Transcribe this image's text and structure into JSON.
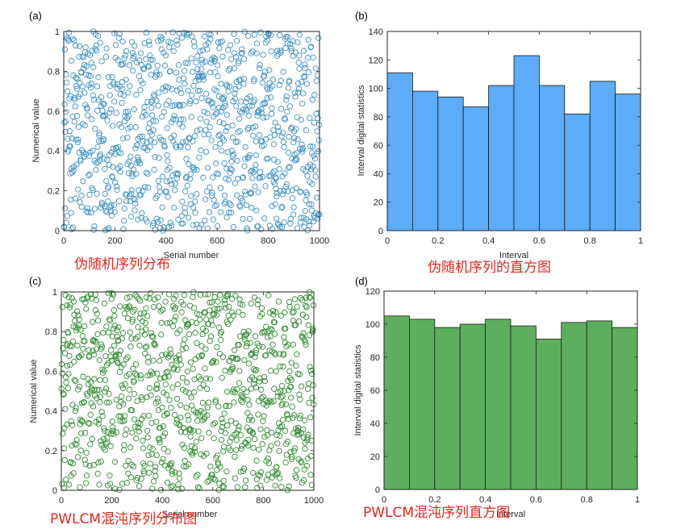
{
  "figure": {
    "panels": [
      {
        "label": "(a)",
        "xlabel": "Serial number",
        "ylabel": "Numerical value",
        "caption": "伪随机序列分布"
      },
      {
        "label": "(b)",
        "xlabel": "Interval",
        "ylabel": "Interval digital statistics",
        "caption": "伪随机序列的直方图"
      },
      {
        "label": "(c)",
        "xlabel": "Serial number",
        "ylabel": "Numerical value",
        "caption": "PWLCM混沌序列分布图"
      },
      {
        "label": "(d)",
        "xlabel": "Interval",
        "ylabel": "Interval digital statistics",
        "caption": "PWLCM混沌序列直方图"
      }
    ]
  },
  "colors": {
    "scatter_a": "#3d8fc2",
    "hist_b": "#5cacf7",
    "scatter_c": "#2f8a2f",
    "hist_d": "#5fae5f",
    "caption": "#e8261c"
  },
  "chart_data": [
    {
      "type": "scatter",
      "points": 1000,
      "xlim": [
        0,
        1000
      ],
      "ylim": [
        0,
        1
      ],
      "xticks": [
        "0",
        "200",
        "400",
        "600",
        "800",
        "1000"
      ],
      "yticks": [
        "0",
        "0.2",
        "0.4",
        "0.6",
        "0.8",
        "1"
      ],
      "marker": "open-circle",
      "distribution": "uniform"
    },
    {
      "type": "bar",
      "bin_edges": [
        0,
        0.1,
        0.2,
        0.3,
        0.4,
        0.5,
        0.6,
        0.7,
        0.8,
        0.9,
        1.0
      ],
      "values": [
        111,
        98,
        94,
        87,
        102,
        123,
        102,
        82,
        105,
        96
      ],
      "xlim": [
        0,
        1
      ],
      "ylim": [
        0,
        140
      ],
      "xticks": [
        "0",
        "0.2",
        "0.4",
        "0.6",
        "0.8",
        "1"
      ],
      "yticks": [
        "0",
        "20",
        "40",
        "60",
        "80",
        "100",
        "120",
        "140"
      ]
    },
    {
      "type": "scatter",
      "points": 1000,
      "xlim": [
        0,
        1000
      ],
      "ylim": [
        0,
        1
      ],
      "xticks": [
        "0",
        "200",
        "400",
        "600",
        "800",
        "1000"
      ],
      "yticks": [
        "0",
        "0.2",
        "0.4",
        "0.6",
        "0.8",
        "1"
      ],
      "marker": "open-circle",
      "distribution": "uniform"
    },
    {
      "type": "bar",
      "bin_edges": [
        0,
        0.1,
        0.2,
        0.3,
        0.4,
        0.5,
        0.6,
        0.7,
        0.8,
        0.9,
        1.0
      ],
      "values": [
        105,
        103,
        98,
        100,
        103,
        99,
        91,
        101,
        102,
        98
      ],
      "xlim": [
        0,
        1
      ],
      "ylim": [
        0,
        120
      ],
      "xticks": [
        "0",
        "0.2",
        "0.4",
        "0.6",
        "0.8",
        "1"
      ],
      "yticks": [
        "0",
        "20",
        "40",
        "60",
        "80",
        "100",
        "120"
      ]
    }
  ]
}
